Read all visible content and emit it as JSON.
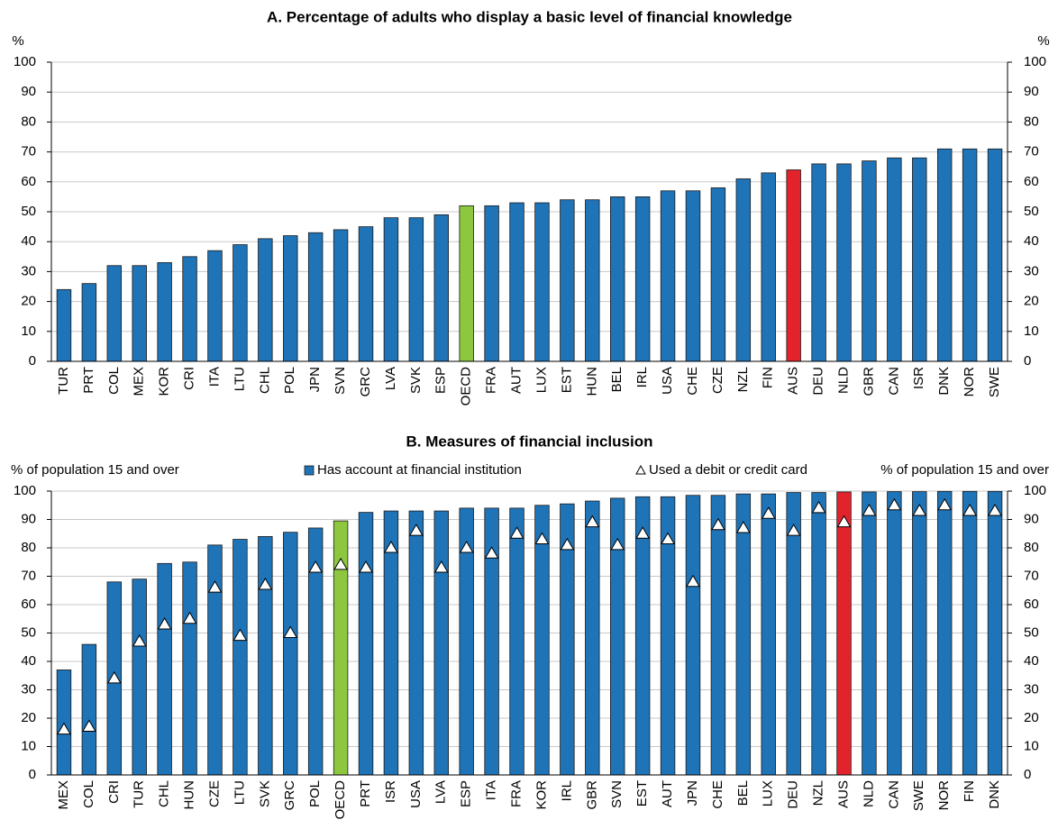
{
  "chart_data": [
    {
      "type": "bar",
      "title": "A. Percentage of adults who display a basic level of financial knowledge",
      "y_label": "%",
      "categories": [
        "TUR",
        "PRT",
        "COL",
        "MEX",
        "KOR",
        "CRI",
        "ITA",
        "LTU",
        "CHL",
        "POL",
        "JPN",
        "SVN",
        "GRC",
        "LVA",
        "SVK",
        "ESP",
        "OECD",
        "FRA",
        "AUT",
        "LUX",
        "EST",
        "HUN",
        "BEL",
        "IRL",
        "USA",
        "CHE",
        "CZE",
        "NZL",
        "FIN",
        "AUS",
        "DEU",
        "NLD",
        "GBR",
        "CAN",
        "ISR",
        "DNK",
        "NOR",
        "SWE"
      ],
      "series": [
        {
          "color": "#1f73b7",
          "values": [
            24,
            26,
            32,
            32,
            33,
            35,
            37,
            39,
            41,
            42,
            43,
            44,
            45,
            48,
            48,
            49,
            52,
            52,
            53,
            53,
            54,
            54,
            55,
            55,
            57,
            57,
            58,
            61,
            63,
            64,
            66,
            66,
            67,
            68,
            68,
            71,
            71,
            71
          ],
          "bar_colors": [
            "#1f73b7",
            "#1f73b7",
            "#1f73b7",
            "#1f73b7",
            "#1f73b7",
            "#1f73b7",
            "#1f73b7",
            "#1f73b7",
            "#1f73b7",
            "#1f73b7",
            "#1f73b7",
            "#1f73b7",
            "#1f73b7",
            "#1f73b7",
            "#1f73b7",
            "#1f73b7",
            "#8dc63f",
            "#1f73b7",
            "#1f73b7",
            "#1f73b7",
            "#1f73b7",
            "#1f73b7",
            "#1f73b7",
            "#1f73b7",
            "#1f73b7",
            "#1f73b7",
            "#1f73b7",
            "#1f73b7",
            "#1f73b7",
            "#e3232b",
            "#1f73b7",
            "#1f73b7",
            "#1f73b7",
            "#1f73b7",
            "#1f73b7",
            "#1f73b7",
            "#1f73b7",
            "#1f73b7"
          ]
        }
      ],
      "ylim": [
        0,
        100
      ],
      "yticks": [
        0,
        10,
        20,
        30,
        40,
        50,
        60,
        70,
        80,
        90,
        100
      ]
    },
    {
      "type": "bar",
      "title": "B. Measures of financial inclusion",
      "y_label": "% of population 15 and over",
      "categories": [
        "MEX",
        "COL",
        "CRI",
        "TUR",
        "CHL",
        "HUN",
        "CZE",
        "LTU",
        "SVK",
        "GRC",
        "POL",
        "OECD",
        "PRT",
        "ISR",
        "USA",
        "LVA",
        "ESP",
        "ITA",
        "FRA",
        "KOR",
        "IRL",
        "GBR",
        "SVN",
        "EST",
        "AUT",
        "JPN",
        "CHE",
        "BEL",
        "LUX",
        "DEU",
        "NZL",
        "AUS",
        "NLD",
        "CAN",
        "SWE",
        "NOR",
        "FIN",
        "DNK"
      ],
      "series": [
        {
          "name": "Has account at financial institution",
          "color": "#1f73b7",
          "values": [
            37,
            46,
            68,
            69,
            74.5,
            75,
            81,
            83,
            84,
            85.5,
            87,
            89.5,
            92.5,
            93,
            93,
            93,
            94,
            94,
            94,
            95,
            95.5,
            96.5,
            97.5,
            98,
            98,
            98.5,
            98.5,
            99,
            99,
            99.5,
            99.5,
            99.7,
            99.7,
            99.8,
            99.8,
            99.9,
            99.9,
            99.9
          ],
          "bar_colors": [
            "#1f73b7",
            "#1f73b7",
            "#1f73b7",
            "#1f73b7",
            "#1f73b7",
            "#1f73b7",
            "#1f73b7",
            "#1f73b7",
            "#1f73b7",
            "#1f73b7",
            "#1f73b7",
            "#8dc63f",
            "#1f73b7",
            "#1f73b7",
            "#1f73b7",
            "#1f73b7",
            "#1f73b7",
            "#1f73b7",
            "#1f73b7",
            "#1f73b7",
            "#1f73b7",
            "#1f73b7",
            "#1f73b7",
            "#1f73b7",
            "#1f73b7",
            "#1f73b7",
            "#1f73b7",
            "#1f73b7",
            "#1f73b7",
            "#1f73b7",
            "#1f73b7",
            "#e3232b",
            "#1f73b7",
            "#1f73b7",
            "#1f73b7",
            "#1f73b7",
            "#1f73b7",
            "#1f73b7"
          ]
        },
        {
          "name": "Used a debit or credit card",
          "color": "#ffffff",
          "marker": "triangle",
          "values": [
            16,
            17,
            34,
            47,
            53,
            55,
            66,
            49,
            67,
            50,
            73,
            74,
            73,
            80,
            86,
            73,
            80,
            78,
            85,
            83,
            81,
            89,
            81,
            85,
            83,
            68,
            88,
            87,
            92,
            86,
            94,
            89,
            93,
            95,
            93,
            95,
            93,
            93
          ]
        }
      ],
      "ylim": [
        0,
        100
      ],
      "yticks": [
        0,
        10,
        20,
        30,
        40,
        50,
        60,
        70,
        80,
        90,
        100
      ]
    }
  ]
}
